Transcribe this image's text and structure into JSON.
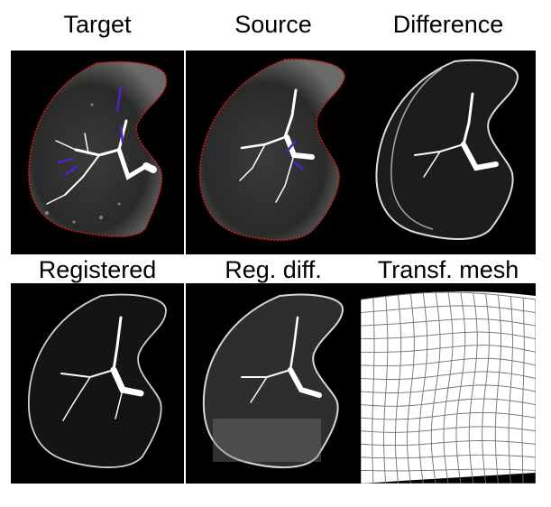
{
  "colors": {
    "background": "#000000",
    "contour": "#d01818",
    "vessel_overlay": "#5020c8",
    "tissue": "#ffffff"
  },
  "panels": [
    {
      "label": "Target",
      "overlay": true
    },
    {
      "label": "Source",
      "overlay": true
    },
    {
      "label": "Difference",
      "overlay": false
    },
    {
      "label": "Registered",
      "overlay": false
    },
    {
      "label": "Reg. diff.",
      "overlay": false
    },
    {
      "label": "Transf. mesh",
      "overlay": false
    }
  ]
}
